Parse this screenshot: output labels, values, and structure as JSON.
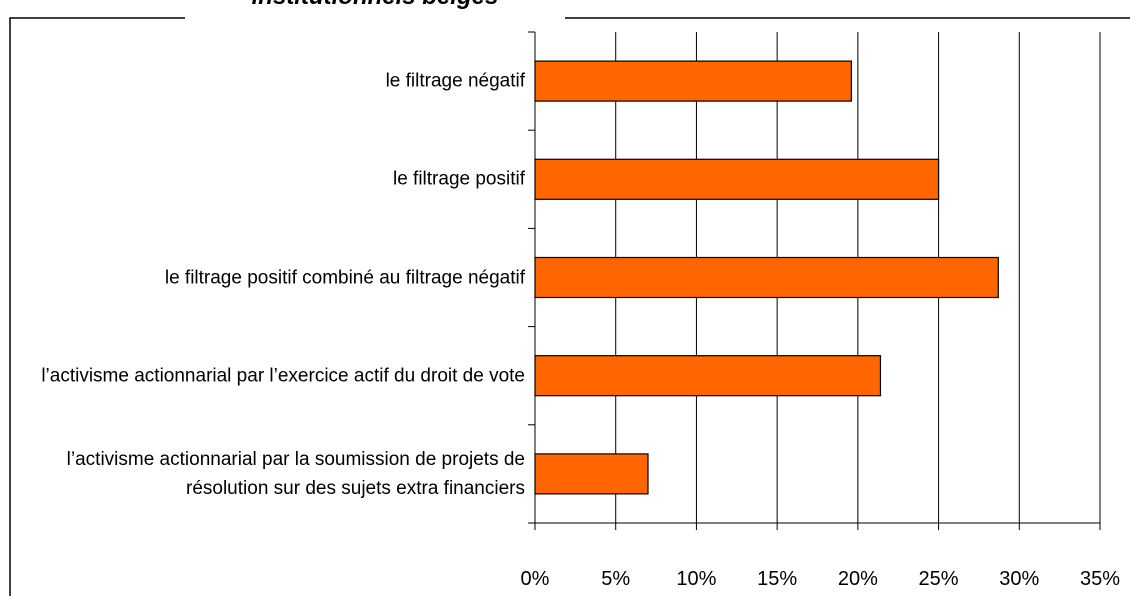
{
  "chart_data": {
    "type": "bar",
    "orientation": "horizontal",
    "title": "institutionnels belges",
    "categories": [
      "le filtrage négatif",
      "le filtrage positif",
      "le filtrage positif combiné au filtrage négatif",
      "l’activisme actionnarial par l’exercice actif du droit de vote",
      "l’activisme actionnarial par la soumission de projets de résolution sur des sujets extra financiers"
    ],
    "values": [
      19.6,
      25,
      28.7,
      21.4,
      7
    ],
    "color": "#ff6600",
    "xlim": [
      0,
      35
    ],
    "xticks": [
      {
        "value": 0,
        "label": "0%"
      },
      {
        "value": 5,
        "label": "5%"
      },
      {
        "value": 10,
        "label": "10%"
      },
      {
        "value": 15,
        "label": "15%"
      },
      {
        "value": 20,
        "label": "20%"
      },
      {
        "value": 25,
        "label": "25%"
      },
      {
        "value": 30,
        "label": "30%"
      },
      {
        "value": 35,
        "label": "35%"
      }
    ],
    "grid": true
  }
}
